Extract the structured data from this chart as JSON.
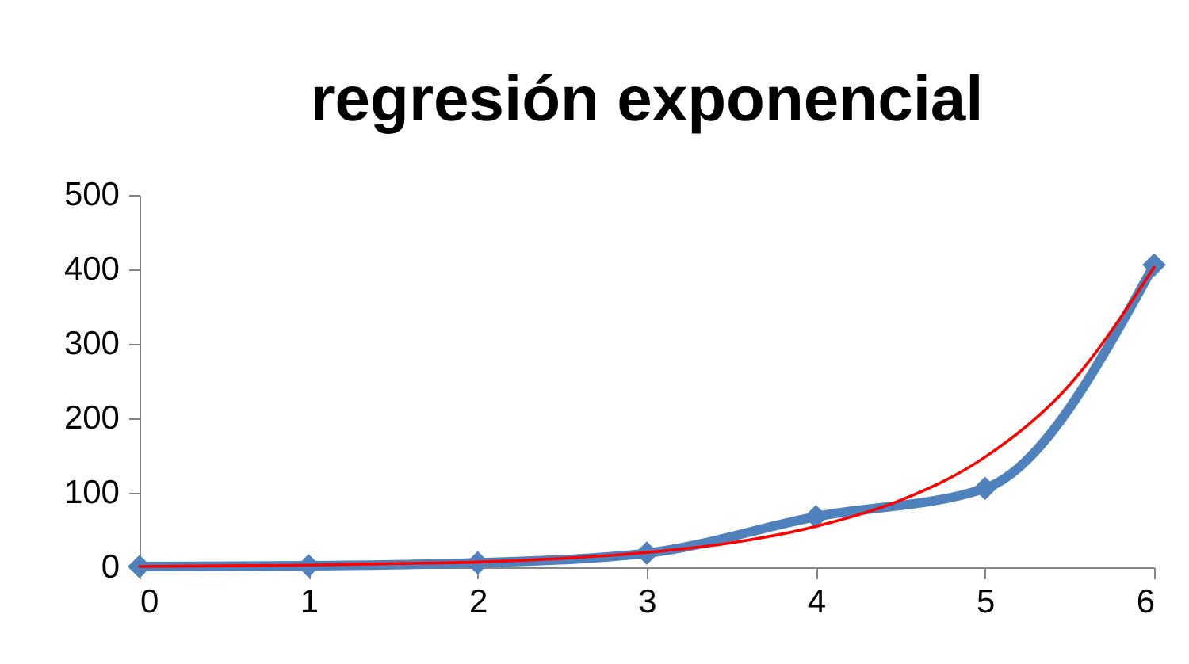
{
  "chart_data": {
    "type": "line",
    "title": "regresión exponencial",
    "x": [
      0,
      1,
      2,
      3,
      4,
      5,
      6
    ],
    "xlim": [
      0,
      6
    ],
    "xticks": [
      0,
      1,
      2,
      3,
      4,
      5,
      6
    ],
    "ylim": [
      0,
      500
    ],
    "yticks": [
      0,
      100,
      200,
      300,
      400,
      500
    ],
    "grid": false,
    "marker": "diamond",
    "series": [
      {
        "color": "#4f81bd",
        "values": [
          1,
          2,
          6,
          19,
          68,
          106,
          406
        ]
      },
      {
        "type": "line",
        "color": "#ff0000",
        "marker": "none",
        "x": [
          0,
          0.5,
          1,
          1.5,
          2,
          2.5,
          3,
          3.5,
          4,
          4.5,
          5,
          5.5,
          6
        ],
        "values": [
          1,
          2,
          3,
          5,
          7,
          12,
          20,
          33,
          55,
          90,
          148,
          245,
          403
        ]
      }
    ]
  }
}
